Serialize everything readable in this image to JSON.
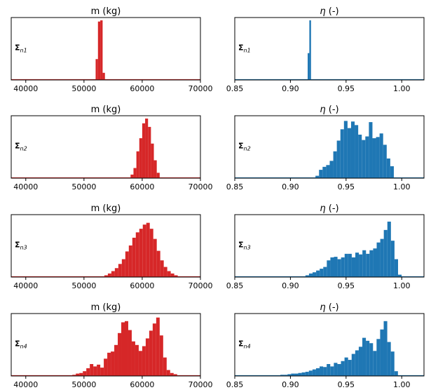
{
  "colors": {
    "m": "#d62728",
    "eta": "#1f77b4"
  },
  "column_titles": {
    "m": "m (kg)",
    "eta_symbol": "η",
    "eta_rest": " (-)"
  },
  "chart_data": [
    {
      "type": "histogram",
      "row": 1,
      "column": "m",
      "title": "m (kg)",
      "label": "Σ",
      "label_sub": "n1",
      "xlim": [
        37500,
        70000
      ],
      "xticks": [
        40000,
        50000,
        60000,
        70000
      ],
      "bin_start": 52000,
      "bin_width": 400,
      "heights": [
        0.35,
        0.98,
        1.0,
        0.12
      ]
    },
    {
      "type": "histogram",
      "row": 1,
      "column": "eta",
      "title": "η (-)",
      "label": "Σ",
      "label_sub": "n1",
      "xlim": [
        0.85,
        1.02
      ],
      "xticks": [
        0.85,
        0.9,
        0.95,
        1.0
      ],
      "bin_start": 0.9155,
      "bin_width": 0.0015,
      "heights": [
        0.45,
        1.0
      ]
    },
    {
      "type": "histogram",
      "row": 2,
      "column": "m",
      "title": "m (kg)",
      "label": "Σ",
      "label_sub": "n2",
      "xlim": [
        37500,
        70000
      ],
      "xticks": [
        40000,
        50000,
        60000,
        70000
      ],
      "bin_start": 58000,
      "bin_width": 500,
      "heights": [
        0.06,
        0.17,
        0.45,
        0.67,
        0.92,
        1.0,
        0.86,
        0.58,
        0.3,
        0.09
      ]
    },
    {
      "type": "histogram",
      "row": 2,
      "column": "eta",
      "title": "η (-)",
      "label": "Σ",
      "label_sub": "n2",
      "xlim": [
        0.85,
        1.02
      ],
      "xticks": [
        0.85,
        0.9,
        0.95,
        1.0
      ],
      "bin_start": 0.9225,
      "bin_width": 0.0032,
      "heights": [
        0.04,
        0.14,
        0.19,
        0.22,
        0.29,
        0.45,
        0.63,
        0.82,
        0.96,
        0.84,
        0.95,
        0.89,
        0.73,
        0.64,
        0.7,
        0.94,
        0.67,
        0.69,
        0.75,
        0.56,
        0.33,
        0.2
      ]
    },
    {
      "type": "histogram",
      "row": 3,
      "column": "m",
      "title": "m (kg)",
      "label": "Σ",
      "label_sub": "n3",
      "xlim": [
        37500,
        70000
      ],
      "xticks": [
        40000,
        50000,
        60000,
        70000
      ],
      "bin_start": 53500,
      "bin_width": 600,
      "heights": [
        0.03,
        0.06,
        0.1,
        0.15,
        0.22,
        0.3,
        0.43,
        0.53,
        0.66,
        0.75,
        0.81,
        0.88,
        0.91,
        0.81,
        0.64,
        0.44,
        0.28,
        0.17,
        0.1,
        0.06,
        0.03
      ]
    },
    {
      "type": "histogram",
      "row": 3,
      "column": "eta",
      "title": "η (-)",
      "label": "Σ",
      "label_sub": "n3",
      "xlim": [
        0.85,
        1.02
      ],
      "xticks": [
        0.85,
        0.9,
        0.95,
        1.0
      ],
      "bin_start": 0.9135,
      "bin_width": 0.0032,
      "heights": [
        0.03,
        0.06,
        0.08,
        0.11,
        0.14,
        0.17,
        0.28,
        0.33,
        0.34,
        0.3,
        0.33,
        0.39,
        0.39,
        0.33,
        0.41,
        0.38,
        0.45,
        0.39,
        0.45,
        0.48,
        0.58,
        0.64,
        0.79,
        0.93,
        0.61,
        0.3,
        0.04
      ]
    },
    {
      "type": "histogram",
      "row": 4,
      "column": "m",
      "title": "m (kg)",
      "label": "Σ",
      "label_sub": "n4",
      "xlim": [
        37500,
        70000
      ],
      "xticks": [
        40000,
        50000,
        60000,
        70000
      ],
      "bin_start": 48000,
      "bin_width": 600,
      "heights": [
        0.02,
        0.04,
        0.05,
        0.08,
        0.13,
        0.2,
        0.16,
        0.19,
        0.14,
        0.29,
        0.39,
        0.41,
        0.52,
        0.72,
        0.9,
        0.92,
        0.77,
        0.58,
        0.52,
        0.42,
        0.5,
        0.63,
        0.76,
        0.88,
        0.98,
        0.68,
        0.31,
        0.1,
        0.05,
        0.03,
        0.01
      ]
    },
    {
      "type": "histogram",
      "row": 4,
      "column": "eta",
      "title": "η (-)",
      "label": "Σ",
      "label_sub": "n4",
      "xlim": [
        0.85,
        1.02
      ],
      "xticks": [
        0.85,
        0.9,
        0.95,
        1.0
      ],
      "bin_start": 0.891,
      "bin_width": 0.0032,
      "heights": [
        0.02,
        0.02,
        0.03,
        0.04,
        0.04,
        0.05,
        0.06,
        0.07,
        0.09,
        0.11,
        0.13,
        0.16,
        0.15,
        0.2,
        0.16,
        0.22,
        0.2,
        0.25,
        0.31,
        0.27,
        0.37,
        0.43,
        0.49,
        0.64,
        0.59,
        0.55,
        0.42,
        0.62,
        0.78,
        0.92,
        0.57,
        0.41,
        0.08
      ]
    }
  ]
}
